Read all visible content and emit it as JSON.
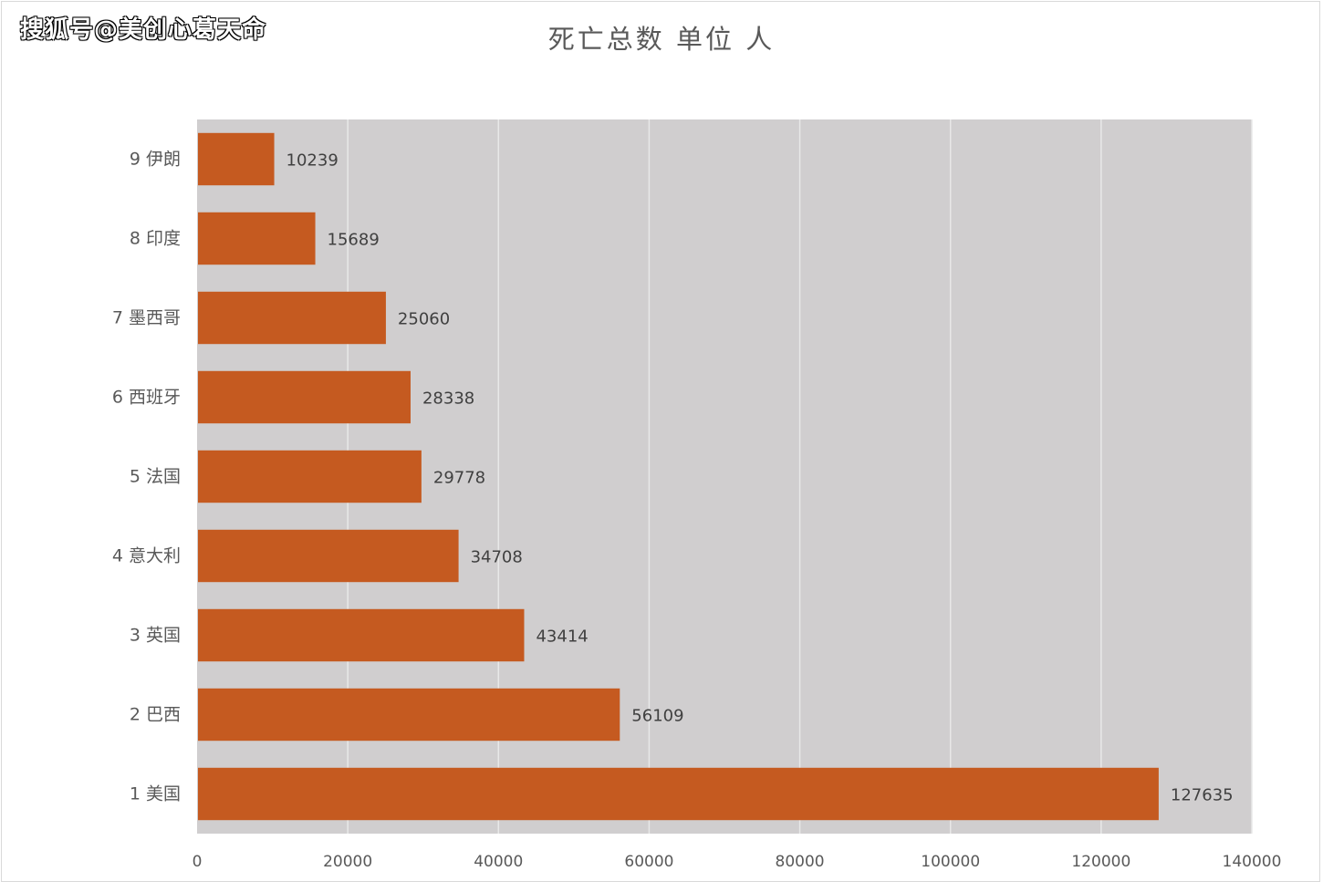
{
  "watermark": "搜狐号@美创心葛天命",
  "chart_data": {
    "type": "bar",
    "orientation": "horizontal",
    "title": "死亡总数 单位 人",
    "categories": [
      "9 伊朗",
      "8 印度",
      "7 墨西哥",
      "6 西班牙",
      "5 法国",
      "4 意大利",
      "3 英国",
      "2 巴西",
      "1 美国"
    ],
    "values": [
      10239,
      15689,
      25060,
      28338,
      29778,
      34708,
      43414,
      56109,
      127635
    ],
    "xlim": [
      0,
      140000
    ],
    "xticks": [
      "0",
      "20000",
      "40000",
      "60000",
      "80000",
      "100000",
      "120000",
      "140000"
    ],
    "grid": true,
    "colors": {
      "bar": "#c55a20",
      "plot_bg": "#d0cecf",
      "grid": "#e8e8e8"
    }
  }
}
